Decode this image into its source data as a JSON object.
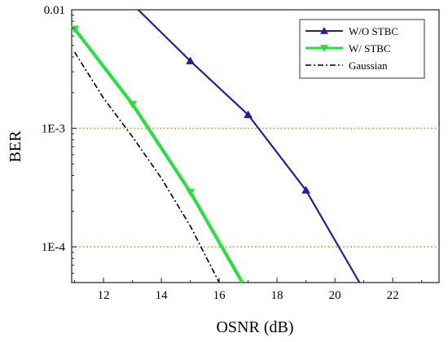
{
  "chart_data": {
    "type": "line",
    "xlabel": "OSNR (dB)",
    "ylabel": "BER",
    "xlim": [
      10.9,
      23.6
    ],
    "ylim": [
      5e-05,
      0.01
    ],
    "yscale": "log",
    "x_ticks": [
      12,
      14,
      16,
      18,
      20,
      22
    ],
    "x_tick_labels": [
      "12",
      "14",
      "16",
      "18",
      "20",
      "22"
    ],
    "y_ticks": [
      0.0001,
      0.001,
      0.01
    ],
    "y_tick_labels": [
      "1E-4",
      "1E-3",
      "0.01"
    ],
    "grid": false,
    "legend_position": "top-right",
    "reference_lines": [
      {
        "y": 0.001,
        "color": "#e8a33c",
        "style": "dotted"
      },
      {
        "y": 0.0001,
        "color": "#e8a33c",
        "style": "dotted"
      }
    ],
    "series": [
      {
        "name": "W/O STBC",
        "color": "#1f1fa6",
        "marker": "triangle-up",
        "line_style": "solid",
        "x": [
          13.2,
          15,
          17,
          19,
          20.85
        ],
        "y": [
          0.01,
          0.0037,
          0.0013,
          0.0003,
          5e-05
        ],
        "marker_x": [
          15,
          17,
          19
        ],
        "marker_y": [
          0.0037,
          0.0013,
          0.0003
        ]
      },
      {
        "name": "W/ STBC",
        "color": "#22e23c",
        "marker": "triangle-down",
        "line_style": "solid",
        "x": [
          11,
          13,
          15,
          16.8
        ],
        "y": [
          0.0069,
          0.0016,
          0.00029,
          5e-05
        ],
        "marker_x": [
          11,
          13,
          15
        ],
        "marker_y": [
          0.0069,
          0.0016,
          0.00029
        ]
      },
      {
        "name": "Gaussian",
        "color": "#000000",
        "marker": "none",
        "line_style": "dash-dot",
        "x": [
          11,
          12,
          13,
          14,
          15,
          16
        ],
        "y": [
          0.0044,
          0.0018,
          0.00085,
          0.00038,
          0.00015,
          5e-05
        ],
        "marker_x": [],
        "marker_y": []
      }
    ]
  }
}
